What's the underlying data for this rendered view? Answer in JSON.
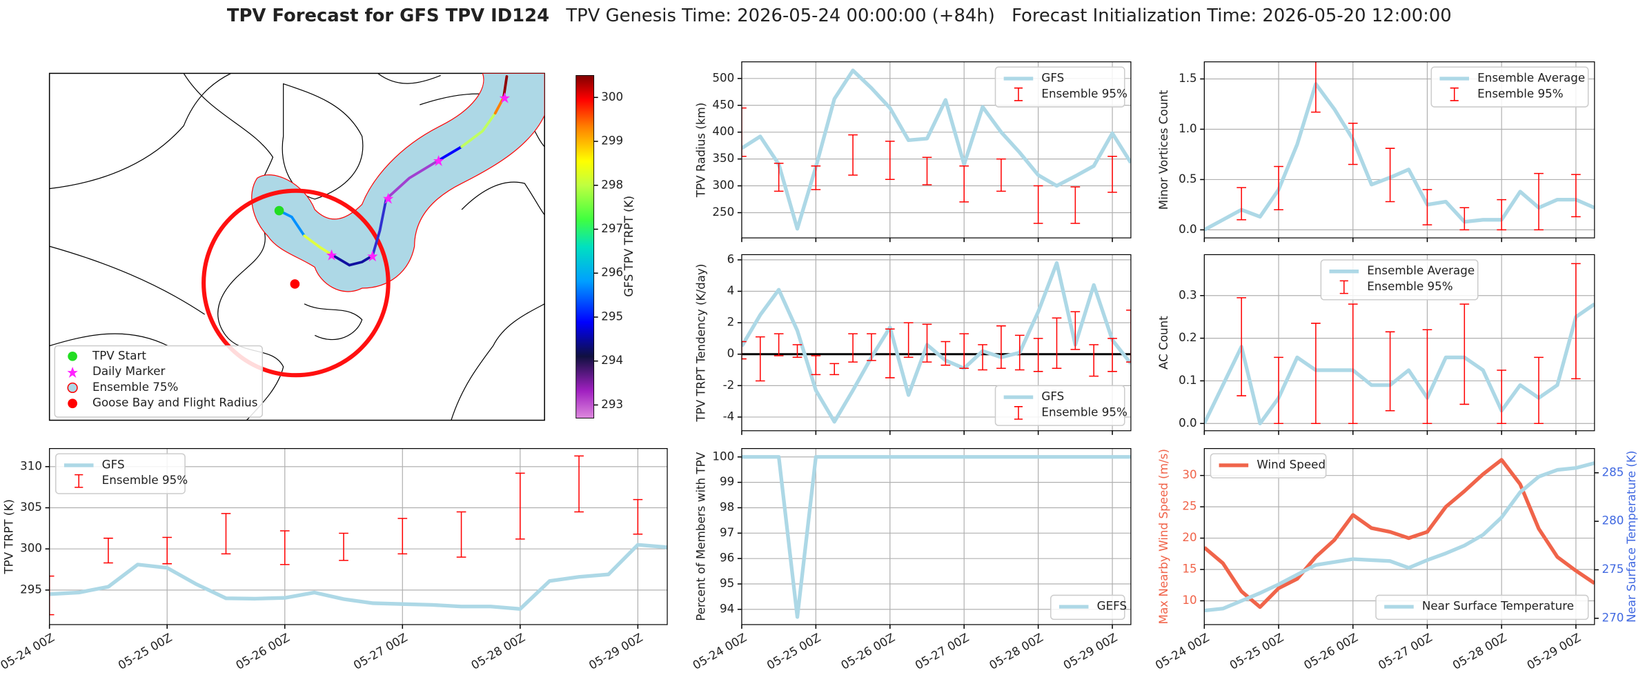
{
  "title": {
    "bold": "TPV Forecast for GFS TPV ID124",
    "genesis": "TPV Genesis Time: 2026-05-24 00:00:00 (+84h)",
    "init": "Forecast Initialization Time: 2026-05-20 12:00:00"
  },
  "map": {
    "colorbar": {
      "label": "GFS TPV TRPT (K)",
      "clim": [
        292.7,
        300.5
      ],
      "ticks": [
        293,
        294,
        295,
        296,
        297,
        298,
        299,
        300
      ]
    },
    "legend": [
      "TPV Start",
      "Daily Marker",
      "Ensemble 75%",
      "Goose Bay and Flight Radius"
    ]
  },
  "chart_data": [
    {
      "type": "line",
      "ylabel": "TPV TRPT (K)",
      "xlim": [
        0,
        126
      ],
      "ylim": [
        290.8,
        312.2
      ],
      "yticks": [
        295,
        300,
        305,
        310
      ],
      "xticks": [
        {
          "value": 0,
          "label": "05-24 00Z"
        },
        {
          "value": 24,
          "label": "05-25 00Z"
        },
        {
          "value": 48,
          "label": "05-26 00Z"
        },
        {
          "value": 72,
          "label": "05-27 00Z"
        },
        {
          "value": 96,
          "label": "05-28 00Z"
        },
        {
          "value": 120,
          "label": "05-29 00Z"
        }
      ],
      "grid": true,
      "legend": "upper left",
      "x": [
        0,
        6,
        12,
        18,
        24,
        30,
        36,
        42,
        48,
        54,
        60,
        66,
        72,
        78,
        84,
        90,
        96,
        102,
        108,
        114,
        120,
        126
      ],
      "series": [
        {
          "name": "GFS",
          "color": "#add8e6",
          "values": [
            294.5,
            294.7,
            295.4,
            298.1,
            297.7,
            295.7,
            294.0,
            293.95,
            294.05,
            294.7,
            293.9,
            293.4,
            293.3,
            293.2,
            293.0,
            293.0,
            292.7,
            296.1,
            296.6,
            296.9,
            300.5,
            300.2
          ]
        },
        {
          "name": "Ensemble 95%",
          "type": "errorbar",
          "color": "#ff0000",
          "x": [
            0,
            12,
            24,
            36,
            48,
            60,
            72,
            84,
            96,
            108,
            120
          ],
          "low": [
            292.0,
            298.3,
            298.2,
            299.4,
            298.1,
            298.6,
            299.4,
            299.0,
            301.2,
            304.5,
            301.8
          ],
          "high": [
            296.7,
            301.3,
            301.4,
            304.3,
            302.2,
            301.9,
            303.7,
            304.5,
            309.2,
            311.3,
            306.0
          ]
        }
      ]
    },
    {
      "type": "line",
      "ylabel": "TPV Radius (km)",
      "xlim": [
        0,
        126
      ],
      "ylim": [
        203,
        531
      ],
      "yticks": [
        250,
        300,
        350,
        400,
        450,
        500
      ],
      "xticks": [
        {
          "value": 0,
          "label": "05-24 00Z"
        },
        {
          "value": 24,
          "label": "05-25 00Z"
        },
        {
          "value": 48,
          "label": "05-26 00Z"
        },
        {
          "value": 72,
          "label": "05-27 00Z"
        },
        {
          "value": 96,
          "label": "05-28 00Z"
        },
        {
          "value": 120,
          "label": "05-29 00Z"
        }
      ],
      "grid": true,
      "xticklabels": false,
      "legend": "upper right",
      "x": [
        0,
        6,
        12,
        18,
        24,
        30,
        36,
        42,
        48,
        54,
        60,
        66,
        72,
        78,
        84,
        90,
        96,
        102,
        108,
        114,
        120,
        126
      ],
      "series": [
        {
          "name": "GFS",
          "color": "#add8e6",
          "values": [
            370,
            392,
            340,
            220,
            335,
            462,
            515,
            482,
            445,
            385,
            388,
            460,
            340,
            447,
            400,
            362,
            320,
            300,
            318,
            337,
            398,
            343
          ]
        },
        {
          "name": "Ensemble 95%",
          "type": "errorbar",
          "color": "#ff0000",
          "x": [
            0,
            12,
            24,
            36,
            48,
            60,
            72,
            84,
            96,
            108,
            120
          ],
          "low": [
            355,
            290,
            293,
            320,
            312,
            302,
            270,
            290,
            230,
            230,
            288
          ],
          "high": [
            445,
            342,
            337,
            395,
            383,
            353,
            337,
            350,
            300,
            298,
            355
          ]
        }
      ]
    },
    {
      "type": "line",
      "ylabel": "TPV TRPT Tendency (K/day)",
      "xlim": [
        0,
        126
      ],
      "ylim": [
        -4.87,
        6.33
      ],
      "yticks": [
        -4,
        -2,
        0,
        2,
        4,
        6
      ],
      "xticks": [
        {
          "value": 0,
          "label": "05-24 00Z"
        },
        {
          "value": 24,
          "label": "05-25 00Z"
        },
        {
          "value": 48,
          "label": "05-26 00Z"
        },
        {
          "value": 72,
          "label": "05-27 00Z"
        },
        {
          "value": 96,
          "label": "05-28 00Z"
        },
        {
          "value": 120,
          "label": "05-29 00Z"
        }
      ],
      "grid": true,
      "xticklabels": false,
      "hline": 0,
      "legend": "lower right",
      "x": [
        0,
        6,
        12,
        18,
        24,
        30,
        36,
        42,
        48,
        54,
        60,
        66,
        72,
        78,
        84,
        90,
        96,
        102,
        108,
        114,
        120,
        126
      ],
      "series": [
        {
          "name": "GFS",
          "color": "#add8e6",
          "values": [
            0.5,
            2.5,
            4.1,
            1.5,
            -2.3,
            -4.3,
            -2.3,
            -0.2,
            1.7,
            -2.6,
            0.6,
            -0.4,
            -0.9,
            0.2,
            -0.2,
            0.1,
            2.7,
            5.8,
            0.6,
            4.4,
            0.9,
            -0.6
          ]
        },
        {
          "name": "Ensemble 95%",
          "type": "errorbar",
          "color": "#ff0000",
          "x": [
            0,
            6,
            12,
            18,
            24,
            30,
            36,
            42,
            48,
            54,
            60,
            66,
            72,
            78,
            84,
            90,
            96,
            102,
            108,
            114,
            120,
            126
          ],
          "low": [
            -0.3,
            -1.7,
            -0.1,
            -0.2,
            -1.3,
            -1.3,
            -0.5,
            -0.4,
            -1.5,
            -0.2,
            -0.5,
            -0.7,
            -0.9,
            -1.0,
            -0.9,
            -1.0,
            -1.1,
            -0.9,
            0.3,
            -1.4,
            -1.1,
            -0.5
          ],
          "high": [
            0.8,
            1.1,
            1.3,
            0.6,
            -0.1,
            -0.6,
            1.3,
            1.3,
            1.6,
            2.0,
            1.9,
            0.8,
            1.3,
            0.6,
            1.8,
            1.2,
            1.0,
            2.3,
            2.7,
            0.6,
            1.0,
            2.8
          ]
        }
      ]
    },
    {
      "type": "line",
      "ylabel": "Percent of Members with TPV",
      "xlim": [
        0,
        126
      ],
      "ylim": [
        93.4,
        100.33
      ],
      "yticks": [
        94,
        95,
        96,
        97,
        98,
        99,
        100
      ],
      "xticks": [
        {
          "value": 0,
          "label": "05-24 00Z"
        },
        {
          "value": 24,
          "label": "05-25 00Z"
        },
        {
          "value": 48,
          "label": "05-26 00Z"
        },
        {
          "value": 72,
          "label": "05-27 00Z"
        },
        {
          "value": 96,
          "label": "05-28 00Z"
        },
        {
          "value": 120,
          "label": "05-29 00Z"
        }
      ],
      "grid": true,
      "legend": "lower right",
      "x": [
        0,
        6,
        12,
        18,
        24,
        30,
        36,
        42,
        48,
        54,
        60,
        66,
        72,
        78,
        84,
        90,
        96,
        102,
        108,
        114,
        120,
        126
      ],
      "series": [
        {
          "name": "GEFS",
          "color": "#add8e6",
          "values": [
            100,
            100,
            100,
            93.7,
            100,
            100,
            100,
            100,
            100,
            100,
            100,
            100,
            100,
            100,
            100,
            100,
            100,
            100,
            100,
            100,
            100,
            100
          ]
        }
      ]
    },
    {
      "type": "line",
      "ylabel": "Minor Vortices Count",
      "xlim": [
        0,
        126
      ],
      "ylim": [
        -0.08,
        1.67
      ],
      "yticks": [
        {
          "value": 0,
          "label": "0.0"
        },
        0.5,
        {
          "value": 1,
          "label": "1.0"
        },
        1.5
      ],
      "xticks": [
        {
          "value": 0,
          "label": "05-24 00Z"
        },
        {
          "value": 24,
          "label": "05-25 00Z"
        },
        {
          "value": 48,
          "label": "05-26 00Z"
        },
        {
          "value": 72,
          "label": "05-27 00Z"
        },
        {
          "value": 96,
          "label": "05-28 00Z"
        },
        {
          "value": 120,
          "label": "05-29 00Z"
        }
      ],
      "grid": true,
      "xticklabels": false,
      "legend": "upper right",
      "x": [
        0,
        6,
        12,
        18,
        24,
        30,
        36,
        42,
        48,
        54,
        60,
        66,
        72,
        78,
        84,
        90,
        96,
        102,
        108,
        114,
        120,
        126
      ],
      "series": [
        {
          "name": "Ensemble Average",
          "color": "#add8e6",
          "values": [
            0.0,
            0.1,
            0.2,
            0.13,
            0.4,
            0.85,
            1.45,
            1.2,
            0.9,
            0.45,
            0.52,
            0.6,
            0.25,
            0.28,
            0.08,
            0.1,
            0.1,
            0.38,
            0.22,
            0.3,
            0.3,
            0.22
          ]
        },
        {
          "name": "Ensemble 95%",
          "type": "errorbar",
          "color": "#ff0000",
          "x": [
            12,
            24,
            36,
            48,
            60,
            72,
            84,
            96,
            108,
            120
          ],
          "low": [
            0.1,
            0.2,
            1.17,
            0.65,
            0.28,
            0.05,
            0.0,
            0.0,
            0.0,
            0.13
          ],
          "high": [
            0.42,
            0.63,
            1.69,
            1.06,
            0.81,
            0.4,
            0.22,
            0.3,
            0.56,
            0.55
          ]
        }
      ]
    },
    {
      "type": "line",
      "ylabel": "AC Count",
      "xlim": [
        0,
        126
      ],
      "ylim": [
        -0.017,
        0.396
      ],
      "yticks": [
        {
          "value": 0,
          "label": "0.0"
        },
        0.1,
        0.2,
        0.3
      ],
      "xticks": [
        {
          "value": 0,
          "label": "05-24 00Z"
        },
        {
          "value": 24,
          "label": "05-25 00Z"
        },
        {
          "value": 48,
          "label": "05-26 00Z"
        },
        {
          "value": 72,
          "label": "05-27 00Z"
        },
        {
          "value": 96,
          "label": "05-28 00Z"
        },
        {
          "value": 120,
          "label": "05-29 00Z"
        }
      ],
      "grid": true,
      "xticklabels": false,
      "legend": "upper center",
      "x": [
        0,
        6,
        12,
        18,
        24,
        30,
        36,
        42,
        48,
        54,
        60,
        66,
        72,
        78,
        84,
        90,
        96,
        102,
        108,
        114,
        120,
        126
      ],
      "series": [
        {
          "name": "Ensemble Average",
          "color": "#add8e6",
          "values": [
            0.0,
            0.09,
            0.18,
            0.0,
            0.06,
            0.155,
            0.125,
            0.125,
            0.125,
            0.09,
            0.09,
            0.125,
            0.06,
            0.155,
            0.155,
            0.125,
            0.03,
            0.09,
            0.06,
            0.09,
            0.25,
            0.28
          ]
        },
        {
          "name": "Ensemble 95%",
          "type": "errorbar",
          "color": "#ff0000",
          "x": [
            12,
            24,
            36,
            48,
            60,
            72,
            84,
            96,
            108,
            120
          ],
          "low": [
            0.065,
            0.0,
            0.0,
            0.0,
            0.03,
            0.0,
            0.045,
            0.0,
            0.0,
            0.105
          ],
          "high": [
            0.295,
            0.155,
            0.235,
            0.28,
            0.215,
            0.22,
            0.28,
            0.125,
            0.155,
            0.375
          ]
        }
      ]
    },
    {
      "type": "line",
      "ylabel": "Max Nearby Wind Speed (m/s)",
      "y2label": "Near Surface Temperature (K)",
      "ycolor": "#f0644a",
      "y2color": "#4169e1",
      "xlim": [
        0,
        126
      ],
      "ylim": [
        6.2,
        34.3
      ],
      "yticks": [
        10,
        15,
        20,
        25,
        30
      ],
      "y2lim": [
        269.35,
        287.5
      ],
      "y2ticks": [
        270,
        275,
        280,
        285
      ],
      "xticks": [
        {
          "value": 0,
          "label": "05-24 00Z"
        },
        {
          "value": 24,
          "label": "05-25 00Z"
        },
        {
          "value": 48,
          "label": "05-26 00Z"
        },
        {
          "value": 72,
          "label": "05-27 00Z"
        },
        {
          "value": 96,
          "label": "05-28 00Z"
        },
        {
          "value": 120,
          "label": "05-29 00Z"
        }
      ],
      "grid": true,
      "x": [
        0,
        6,
        12,
        18,
        24,
        30,
        36,
        42,
        48,
        54,
        60,
        66,
        72,
        78,
        84,
        90,
        96,
        102,
        108,
        114,
        120,
        126
      ],
      "series": [
        {
          "name": "Wind Speed",
          "color": "#f0644a",
          "legend": "upper left",
          "values": [
            18.5,
            16.0,
            11.5,
            9.0,
            12.0,
            13.5,
            17.0,
            19.7,
            23.7,
            21.6,
            21.0,
            20.0,
            21.0,
            25.0,
            27.5,
            30.2,
            32.5,
            28.6,
            21.5,
            17.0,
            14.8,
            12.8
          ]
        },
        {
          "name": "Near Surface Temperature",
          "color": "#add8e6",
          "axis": "y2",
          "legend": "lower right",
          "values": [
            270.8,
            271.0,
            271.8,
            272.6,
            273.5,
            274.5,
            275.5,
            275.8,
            276.1,
            276.0,
            275.9,
            275.2,
            276.0,
            276.7,
            277.5,
            278.6,
            280.4,
            283.0,
            284.6,
            285.3,
            285.5,
            286.0
          ]
        }
      ]
    }
  ]
}
